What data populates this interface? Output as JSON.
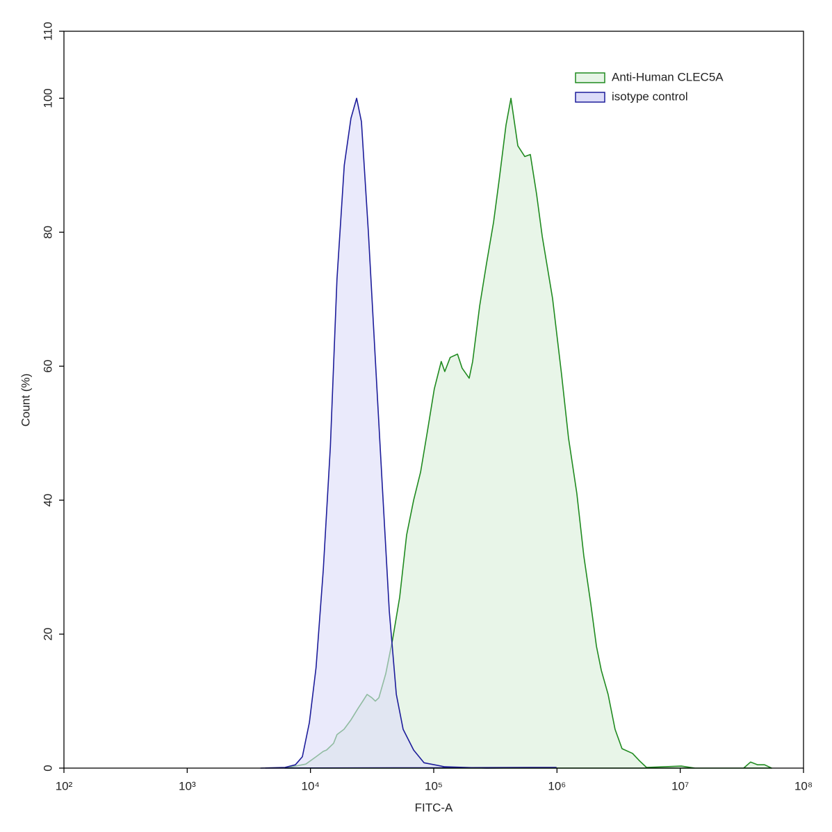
{
  "chart_data": {
    "type": "histogram-overlay",
    "x_label": "FITC-A",
    "y_label": "Count  (%)",
    "xscale": "log",
    "xlim": [
      100,
      100000000
    ],
    "xticks": [
      {
        "value": 100,
        "label": "10²"
      },
      {
        "value": 1000,
        "label": "10³"
      },
      {
        "value": 10000,
        "label": "10⁴"
      },
      {
        "value": 100000,
        "label": "10⁵"
      },
      {
        "value": 1000000,
        "label": "10⁶"
      },
      {
        "value": 10000000,
        "label": "10⁷"
      },
      {
        "value": 100000000,
        "label": "10⁸"
      }
    ],
    "ylim": [
      0,
      110
    ],
    "yticks": [
      0,
      20,
      40,
      60,
      80,
      100,
      110
    ],
    "legend": "top-right",
    "series": [
      {
        "name": "Anti-Human CLEC5A",
        "color": "#1f8a1f",
        "fill": "#e6f4e6",
        "x": [
          6210,
          9170,
          11100,
          12700,
          13500,
          15400,
          16400,
          18700,
          21300,
          24300,
          26600,
          28800,
          31500,
          33600,
          35900,
          40800,
          46500,
          52900,
          60300,
          68700,
          78200,
          89100,
          101000,
          115000,
          123000,
          136000,
          156000,
          170000,
          194000,
          207000,
          236000,
          268000,
          306000,
          339000,
          386000,
          423000,
          481000,
          548000,
          608000,
          684000,
          759000,
          921000,
          1090000,
          1240000,
          1450000,
          1650000,
          1880000,
          2090000,
          2290000,
          2600000,
          2960000,
          3370000,
          4100000,
          4670000,
          5320000,
          10200000,
          13200000,
          32700000,
          37200000,
          42500000,
          48300000,
          55100000
        ],
        "values": [
          0,
          0.6,
          1.7,
          2.5,
          2.7,
          3.7,
          5.0,
          5.8,
          7.2,
          8.9,
          10,
          11,
          10.5,
          10,
          10.5,
          14.1,
          19.3,
          25.5,
          34.8,
          40,
          44.2,
          50.4,
          56.6,
          60.7,
          59.2,
          61.3,
          61.8,
          59.7,
          58.2,
          60.7,
          69,
          75.3,
          81.5,
          87.7,
          96,
          100,
          92.9,
          91.3,
          91.6,
          85.6,
          79.4,
          70.1,
          58.7,
          49.3,
          41,
          31.7,
          24.5,
          18.2,
          14.6,
          11,
          5.8,
          2.9,
          2.2,
          1.1,
          0.1,
          0.3,
          0,
          0,
          0.9,
          0.5,
          0.5,
          0
        ]
      },
      {
        "name": "isotype control",
        "color": "#1c1c9a",
        "fill": "#dcdcf8",
        "x": [
          3950,
          6210,
          7550,
          8590,
          9800,
          11100,
          12700,
          14500,
          16400,
          18800,
          21300,
          23700,
          25900,
          29500,
          33600,
          38300,
          43600,
          49700,
          56500,
          68700,
          83400,
          123000,
          269000,
          984000
        ],
        "values": [
          0,
          0.1,
          0.5,
          1.7,
          6.8,
          15,
          29.6,
          48,
          73,
          90,
          97,
          100,
          96.5,
          80,
          61,
          42,
          23.4,
          11,
          5.8,
          2.7,
          0.8,
          0.2,
          0,
          0.1
        ]
      }
    ]
  }
}
